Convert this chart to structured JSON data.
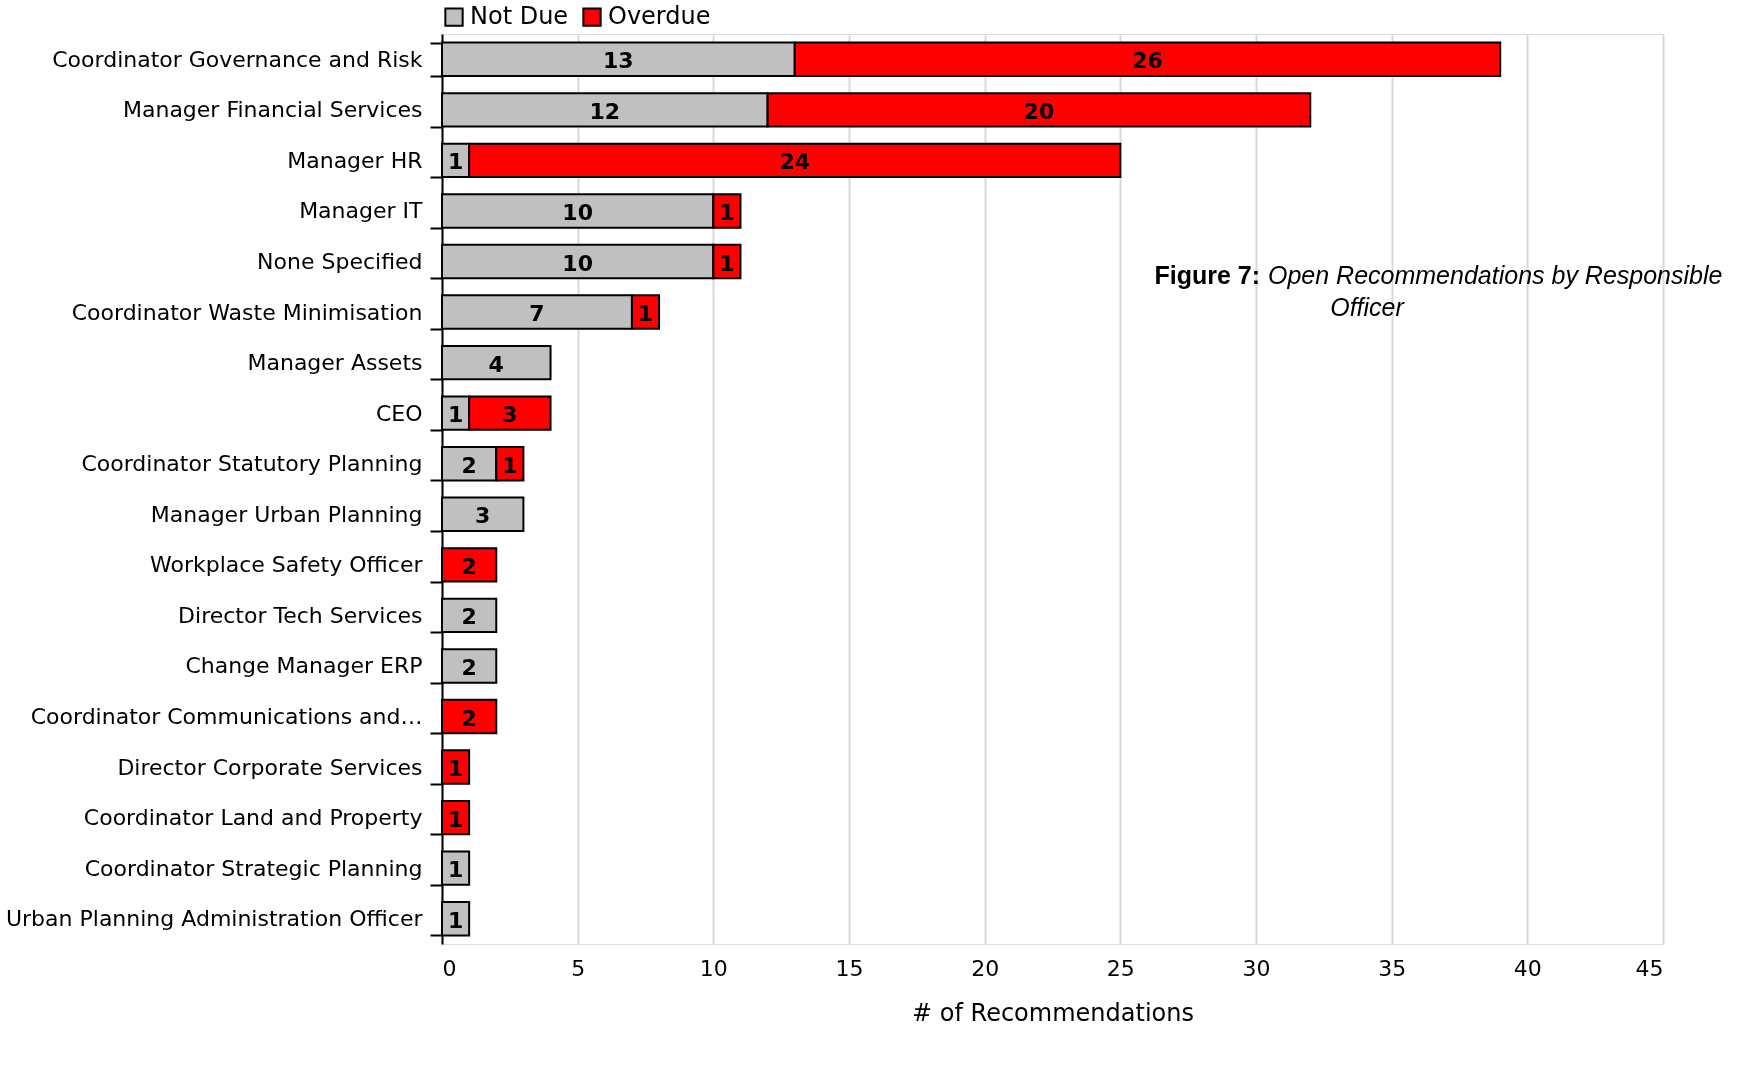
{
  "chart_data": {
    "type": "bar",
    "orientation": "horizontal",
    "stacked": true,
    "title": "Figure 7: Open Recommendations by Responsible Officer",
    "xlabel": "# of Recommendations",
    "categories": [
      "Coordinator Governance and Risk",
      "Manager Financial Services",
      "Manager HR",
      "Manager IT",
      "None Specified",
      "Coordinator Waste Minimisation",
      "Manager Assets",
      "CEO",
      "Coordinator Statutory Planning",
      "Manager Urban Planning",
      "Workplace Safety Officer",
      "Director Tech Services",
      "Change Manager ERP",
      "Coordinator Communications and…",
      "Director Corporate Services",
      "Coordinator Land and Property",
      "Coordinator Strategic Planning",
      "Urban Planning Administration Officer"
    ],
    "series": [
      {
        "name": "Not Due",
        "color": "#c0c0c0",
        "values": [
          13,
          12,
          1,
          10,
          10,
          7,
          4,
          1,
          2,
          3,
          null,
          2,
          2,
          null,
          null,
          null,
          1,
          1
        ]
      },
      {
        "name": "Overdue",
        "color": "#ff0000",
        "values": [
          26,
          20,
          24,
          1,
          1,
          1,
          null,
          3,
          1,
          null,
          2,
          null,
          null,
          2,
          1,
          1,
          null,
          null
        ]
      }
    ],
    "xlim": [
      0,
      45
    ],
    "xticks": [
      0,
      5,
      10,
      15,
      20,
      25,
      30,
      35,
      40,
      45
    ],
    "grid": "x",
    "legend": "top",
    "data_labels": true
  }
}
